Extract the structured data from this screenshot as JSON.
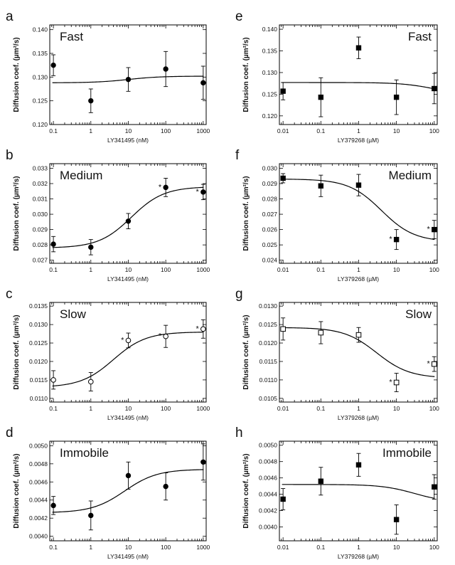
{
  "chart_data": [
    {
      "id": "a",
      "letter": "a",
      "type": "scatter",
      "title": "Fast",
      "title_pos": "top-left",
      "xlabel": "LY341495 (nM)",
      "ylabel": "Diffusion coef. (µm²/s)",
      "xscale": "log",
      "xlim": [
        0.08,
        1200
      ],
      "ylim": [
        0.12,
        0.141
      ],
      "xticks": [
        0.1,
        1,
        10,
        100,
        1000
      ],
      "xticklabels": [
        "0.1",
        "1",
        "10",
        "100",
        "1000"
      ],
      "yticks": [
        0.12,
        0.125,
        0.13,
        0.135,
        0.14
      ],
      "yticklabels": [
        "0.120",
        "0.125",
        "0.130",
        "0.135",
        "0.140"
      ],
      "marker": "circle",
      "filled": true,
      "points": [
        {
          "x": 0.1,
          "y": 0.1325,
          "err": 0.0022,
          "sig": false
        },
        {
          "x": 1,
          "y": 0.125,
          "err": 0.0025,
          "sig": false
        },
        {
          "x": 10,
          "y": 0.1295,
          "err": 0.0025,
          "sig": false
        },
        {
          "x": 100,
          "y": 0.1317,
          "err": 0.0037,
          "sig": false
        },
        {
          "x": 1000,
          "y": 0.1288,
          "err": 0.0035,
          "sig": false
        }
      ],
      "fit": {
        "bottom": 0.1288,
        "top": 0.1302,
        "ec50": 10,
        "hill": 1
      }
    },
    {
      "id": "b",
      "letter": "b",
      "type": "scatter",
      "title": "Medium",
      "title_pos": "top-left",
      "xlabel": "LY341495 (nM)",
      "ylabel": "Diffusion coef. (µm²/s)",
      "xscale": "log",
      "xlim": [
        0.08,
        1200
      ],
      "ylim": [
        0.0268,
        0.0333
      ],
      "xticks": [
        0.1,
        1,
        10,
        100,
        1000
      ],
      "xticklabels": [
        "0.1",
        "1",
        "10",
        "100",
        "1000"
      ],
      "yticks": [
        0.027,
        0.028,
        0.029,
        0.03,
        0.031,
        0.032,
        0.033
      ],
      "yticklabels": [
        "0.027",
        "0.028",
        "0.029",
        "0.030",
        "0.031",
        "0.032",
        "0.033"
      ],
      "marker": "circle",
      "filled": true,
      "points": [
        {
          "x": 0.1,
          "y": 0.02805,
          "err": 0.0005,
          "sig": false
        },
        {
          "x": 1,
          "y": 0.02785,
          "err": 0.0005,
          "sig": false
        },
        {
          "x": 10,
          "y": 0.02955,
          "err": 0.0005,
          "sig": false
        },
        {
          "x": 100,
          "y": 0.03175,
          "err": 0.0006,
          "sig": true
        },
        {
          "x": 1000,
          "y": 0.03145,
          "err": 0.0005,
          "sig": true
        }
      ],
      "fit": {
        "bottom": 0.0278,
        "top": 0.0318,
        "ec50": 12,
        "hill": 1
      }
    },
    {
      "id": "c",
      "letter": "c",
      "type": "scatter",
      "title": "Slow",
      "title_pos": "top-left",
      "xlabel": "LY341495 (nM)",
      "ylabel": "Diffusion coef. (µm²/s)",
      "xscale": "log",
      "xlim": [
        0.08,
        1200
      ],
      "ylim": [
        0.0109,
        0.0136
      ],
      "xticks": [
        0.1,
        1,
        10,
        100,
        1000
      ],
      "xticklabels": [
        "0.1",
        "1",
        "10",
        "100",
        "1000"
      ],
      "yticks": [
        0.011,
        0.0115,
        0.012,
        0.0125,
        0.013,
        0.0135
      ],
      "yticklabels": [
        "0.0110",
        "0.0115",
        "0.0120",
        "0.0125",
        "0.0130",
        "0.0135"
      ],
      "marker": "circle",
      "filled": false,
      "points": [
        {
          "x": 0.1,
          "y": 0.0115,
          "err": 0.00025,
          "sig": false
        },
        {
          "x": 1,
          "y": 0.01145,
          "err": 0.00025,
          "sig": false
        },
        {
          "x": 10,
          "y": 0.01257,
          "err": 0.0002,
          "sig": true
        },
        {
          "x": 100,
          "y": 0.01268,
          "err": 0.0003,
          "sig": true
        },
        {
          "x": 1000,
          "y": 0.01288,
          "err": 0.00025,
          "sig": true
        }
      ],
      "fit": {
        "bottom": 0.0113,
        "top": 0.0128,
        "ec50": 4,
        "hill": 1
      }
    },
    {
      "id": "d",
      "letter": "d",
      "type": "scatter",
      "title": "Immobile",
      "title_pos": "top-left",
      "xlabel": "LY341495 (nM)",
      "ylabel": "Diffusion coef. (µm²/s)",
      "xscale": "log",
      "xlim": [
        0.08,
        1200
      ],
      "ylim": [
        0.00395,
        0.00505
      ],
      "xticks": [
        0.1,
        1,
        10,
        100,
        1000
      ],
      "xticklabels": [
        "0.1",
        "1",
        "10",
        "100",
        "1000"
      ],
      "yticks": [
        0.004,
        0.0042,
        0.0044,
        0.0046,
        0.0048,
        0.005
      ],
      "yticklabels": [
        "0.0040",
        "0.0042",
        "0.0044",
        "0.0046",
        "0.0048",
        "0.0050"
      ],
      "marker": "circle",
      "filled": true,
      "points": [
        {
          "x": 0.1,
          "y": 0.00434,
          "err": 0.0001,
          "sig": false
        },
        {
          "x": 1,
          "y": 0.00423,
          "err": 0.00016,
          "sig": false
        },
        {
          "x": 10,
          "y": 0.00467,
          "err": 0.00015,
          "sig": false
        },
        {
          "x": 100,
          "y": 0.00455,
          "err": 0.00015,
          "sig": false
        },
        {
          "x": 1000,
          "y": 0.00482,
          "err": 0.0002,
          "sig": false
        }
      ],
      "fit": {
        "bottom": 0.00426,
        "top": 0.00474,
        "ec50": 8,
        "hill": 1
      }
    },
    {
      "id": "e",
      "letter": "e",
      "type": "scatter",
      "title": "Fast",
      "title_pos": "top-right",
      "xlabel": "LY379268 (µM)",
      "ylabel": "Diffusion coef. (µm²/s)",
      "xscale": "log",
      "xlim": [
        0.008,
        120
      ],
      "ylim": [
        0.118,
        0.141
      ],
      "xticks": [
        0.01,
        0.1,
        1,
        10,
        100
      ],
      "xticklabels": [
        "0.01",
        "0.1",
        "1",
        "10",
        "100"
      ],
      "yticks": [
        0.12,
        0.125,
        0.13,
        0.135,
        0.14
      ],
      "yticklabels": [
        "0.120",
        "0.125",
        "0.130",
        "0.135",
        "0.140"
      ],
      "marker": "square",
      "filled": true,
      "points": [
        {
          "x": 0.01,
          "y": 0.1257,
          "err": 0.002,
          "sig": false
        },
        {
          "x": 0.1,
          "y": 0.1243,
          "err": 0.0045,
          "sig": false
        },
        {
          "x": 1,
          "y": 0.1357,
          "err": 0.0025,
          "sig": false
        },
        {
          "x": 10,
          "y": 0.1243,
          "err": 0.004,
          "sig": false
        },
        {
          "x": 100,
          "y": 0.1263,
          "err": 0.0035,
          "sig": false
        }
      ],
      "fit": {
        "bottom": 0.1277,
        "top": 0.1248,
        "ec50": 100,
        "hill": 1
      }
    },
    {
      "id": "f",
      "letter": "f",
      "type": "scatter",
      "title": "Medium",
      "title_pos": "top-right",
      "xlabel": "LY379268 (µM)",
      "ylabel": "Diffusion coef. (µm²/s)",
      "xscale": "log",
      "xlim": [
        0.008,
        120
      ],
      "ylim": [
        0.0238,
        0.0303
      ],
      "xticks": [
        0.01,
        0.1,
        1,
        10,
        100
      ],
      "xticklabels": [
        "0.01",
        "0.1",
        "1",
        "10",
        "100"
      ],
      "yticks": [
        0.024,
        0.025,
        0.026,
        0.027,
        0.028,
        0.029,
        0.03
      ],
      "yticklabels": [
        "0.024",
        "0.025",
        "0.026",
        "0.027",
        "0.028",
        "0.029",
        "0.030"
      ],
      "marker": "square",
      "filled": true,
      "points": [
        {
          "x": 0.01,
          "y": 0.02935,
          "err": 0.0003,
          "sig": false
        },
        {
          "x": 0.1,
          "y": 0.02885,
          "err": 0.0007,
          "sig": false
        },
        {
          "x": 1,
          "y": 0.0289,
          "err": 0.0007,
          "sig": false
        },
        {
          "x": 10,
          "y": 0.02535,
          "err": 0.00065,
          "sig": true
        },
        {
          "x": 100,
          "y": 0.026,
          "err": 0.0006,
          "sig": true
        }
      ],
      "fit": {
        "bottom": 0.0293,
        "top": 0.0252,
        "ec50": 4,
        "hill": 1
      }
    },
    {
      "id": "g",
      "letter": "g",
      "type": "scatter",
      "title": "Slow",
      "title_pos": "top-right",
      "xlabel": "LY379268 (µM)",
      "ylabel": "Diffusion coef. (µm²/s)",
      "xscale": "log",
      "xlim": [
        0.008,
        120
      ],
      "ylim": [
        0.0104,
        0.0131
      ],
      "xticks": [
        0.01,
        0.1,
        1,
        10,
        100
      ],
      "xticklabels": [
        "0.01",
        "0.1",
        "1",
        "10",
        "100"
      ],
      "yticks": [
        0.0105,
        0.011,
        0.0115,
        0.012,
        0.0125,
        0.013
      ],
      "yticklabels": [
        "0.0105",
        "0.0110",
        "0.0115",
        "0.0120",
        "0.0125",
        "0.0130"
      ],
      "marker": "square",
      "filled": false,
      "points": [
        {
          "x": 0.01,
          "y": 0.01238,
          "err": 0.0003,
          "sig": false
        },
        {
          "x": 0.1,
          "y": 0.01228,
          "err": 0.0003,
          "sig": false
        },
        {
          "x": 1,
          "y": 0.01222,
          "err": 0.0002,
          "sig": false
        },
        {
          "x": 10,
          "y": 0.01093,
          "err": 0.00025,
          "sig": true
        },
        {
          "x": 100,
          "y": 0.01143,
          "err": 0.0002,
          "sig": true
        }
      ],
      "fit": {
        "bottom": 0.01242,
        "top": 0.01105,
        "ec50": 3,
        "hill": 1
      }
    },
    {
      "id": "h",
      "letter": "h",
      "type": "scatter",
      "title": "Immobile",
      "title_pos": "top-right",
      "xlabel": "LY379268 (µM)",
      "ylabel": "Diffusion coef. (µm²/s)",
      "xscale": "log",
      "xlim": [
        0.008,
        120
      ],
      "ylim": [
        0.00383,
        0.00505
      ],
      "xticks": [
        0.01,
        0.1,
        1,
        10,
        100
      ],
      "xticklabels": [
        "0.01",
        "0.1",
        "1",
        "10",
        "100"
      ],
      "yticks": [
        0.004,
        0.0042,
        0.0044,
        0.0046,
        0.0048,
        0.005
      ],
      "yticklabels": [
        "0.0040",
        "0.0042",
        "0.0044",
        "0.0046",
        "0.0048",
        "0.0050"
      ],
      "marker": "square",
      "filled": true,
      "points": [
        {
          "x": 0.01,
          "y": 0.00434,
          "err": 0.00013,
          "sig": false
        },
        {
          "x": 0.1,
          "y": 0.00456,
          "err": 0.00017,
          "sig": false
        },
        {
          "x": 1,
          "y": 0.00476,
          "err": 0.00014,
          "sig": false
        },
        {
          "x": 10,
          "y": 0.00409,
          "err": 0.00018,
          "sig": false
        },
        {
          "x": 100,
          "y": 0.00449,
          "err": 0.00015,
          "sig": false
        }
      ],
      "fit": {
        "bottom": 0.00452,
        "top": 0.0043,
        "ec50": 30,
        "hill": 1
      }
    }
  ]
}
